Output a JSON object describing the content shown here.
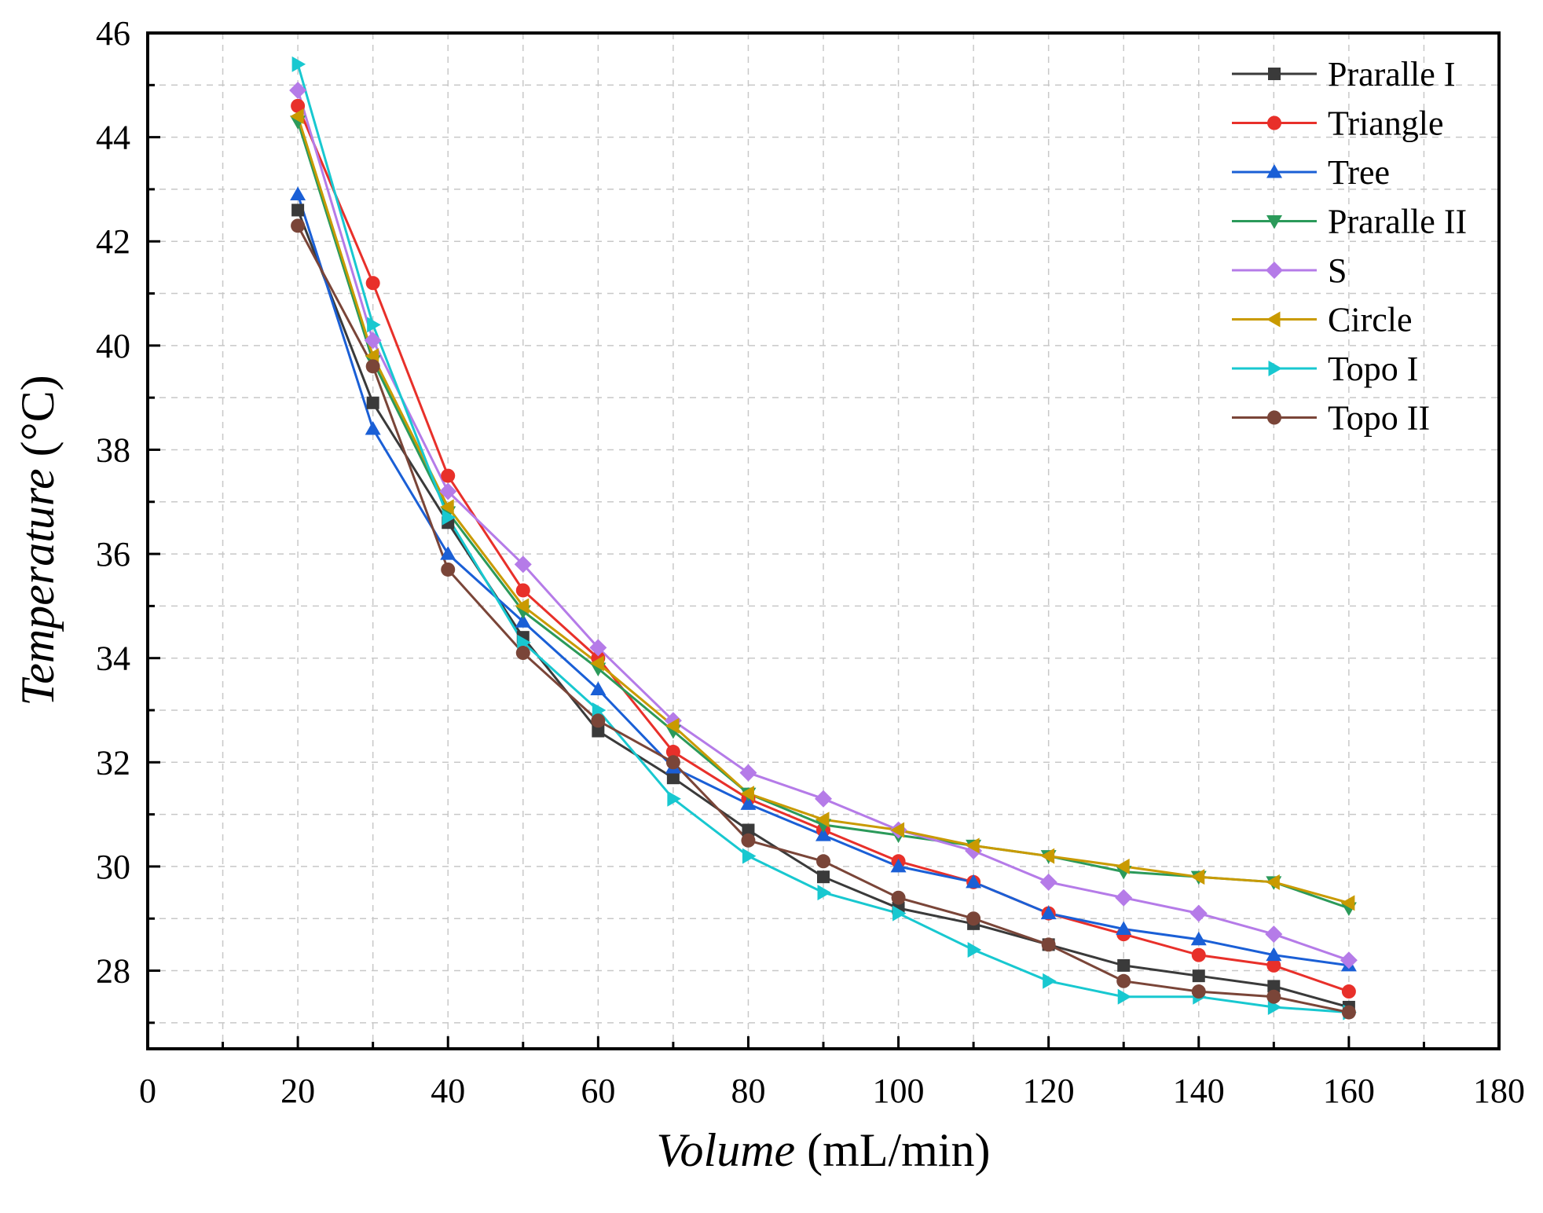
{
  "chart_data": {
    "type": "line",
    "title": "",
    "xlabel_italic": "Volume",
    "xlabel_rest": " (mL/min)",
    "ylabel_italic": "Temperature",
    "ylabel_rest": " (°C)",
    "xlim": [
      0,
      180
    ],
    "ylim": [
      26.5,
      46
    ],
    "xticks": [
      0,
      20,
      40,
      60,
      80,
      100,
      120,
      140,
      160,
      180
    ],
    "yticks": [
      28,
      30,
      32,
      34,
      36,
      38,
      40,
      42,
      44,
      46
    ],
    "grid": true,
    "legend_position": "top-right",
    "x": [
      20,
      30,
      40,
      50,
      60,
      70,
      80,
      90,
      100,
      110,
      120,
      130,
      140,
      150,
      160
    ],
    "series": [
      {
        "name": "Praralle I",
        "color": "#3a3a3a",
        "marker": "square",
        "values": [
          42.6,
          38.9,
          36.6,
          34.4,
          32.6,
          31.7,
          30.7,
          29.8,
          29.2,
          28.9,
          28.5,
          28.1,
          27.9,
          27.7,
          27.3
        ]
      },
      {
        "name": "Triangle",
        "color": "#e8302a",
        "marker": "circle",
        "values": [
          44.6,
          41.2,
          37.5,
          35.3,
          34.0,
          32.2,
          31.3,
          30.7,
          30.1,
          29.7,
          29.1,
          28.7,
          28.3,
          28.1,
          27.6
        ]
      },
      {
        "name": "Tree",
        "color": "#1a5fd6",
        "marker": "triangle-up",
        "values": [
          42.9,
          38.4,
          36.0,
          34.7,
          33.4,
          31.9,
          31.2,
          30.6,
          30.0,
          29.7,
          29.1,
          28.8,
          28.6,
          28.3,
          28.1
        ]
      },
      {
        "name": "Praralle II",
        "color": "#2b9a5a",
        "marker": "triangle-down",
        "values": [
          44.3,
          39.7,
          36.8,
          34.9,
          33.8,
          32.6,
          31.4,
          30.8,
          30.6,
          30.4,
          30.2,
          29.9,
          29.8,
          29.7,
          29.2
        ]
      },
      {
        "name": "S",
        "color": "#b57be8",
        "marker": "diamond",
        "values": [
          44.9,
          40.1,
          37.2,
          35.8,
          34.2,
          32.8,
          31.8,
          31.3,
          30.7,
          30.3,
          29.7,
          29.4,
          29.1,
          28.7,
          28.2
        ]
      },
      {
        "name": "Circle",
        "color": "#c99a00",
        "marker": "triangle-left",
        "values": [
          44.4,
          39.8,
          36.9,
          35.0,
          33.9,
          32.7,
          31.4,
          30.9,
          30.7,
          30.4,
          30.2,
          30.0,
          29.8,
          29.7,
          29.3
        ]
      },
      {
        "name": "Topo I",
        "color": "#18c8d0",
        "marker": "triangle-right",
        "values": [
          45.4,
          40.4,
          36.7,
          34.3,
          33.0,
          31.3,
          30.2,
          29.5,
          29.1,
          28.4,
          27.8,
          27.5,
          27.5,
          27.3,
          27.2
        ]
      },
      {
        "name": "Topo II",
        "color": "#7a4538",
        "marker": "circle",
        "values": [
          42.3,
          39.6,
          35.7,
          34.1,
          32.8,
          32.0,
          30.5,
          30.1,
          29.4,
          29.0,
          28.5,
          27.8,
          27.6,
          27.5,
          27.2
        ]
      }
    ]
  }
}
